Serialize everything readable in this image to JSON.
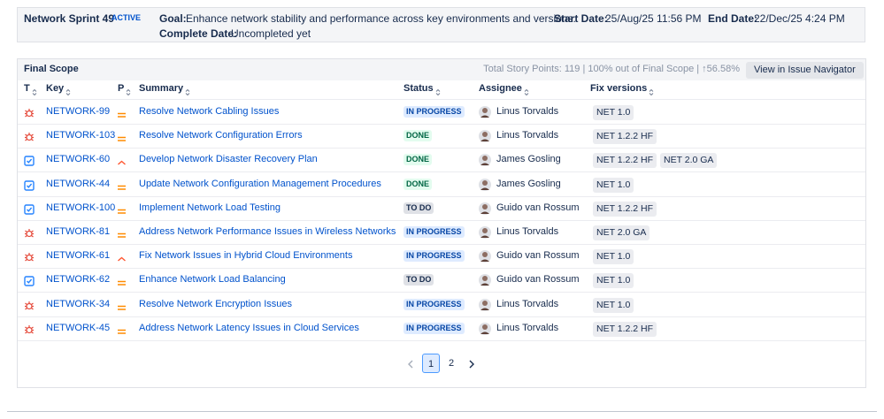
{
  "header": {
    "sprint": "Network Sprint 49",
    "state": "ACTIVE",
    "goal_label": "Goal:",
    "goal": "Enhance network stability and performance across key environments and versions.",
    "start_label": "Start Date:",
    "start": "25/Aug/25 11:56 PM",
    "end_label": "End Date:",
    "end": "22/Dec/25 4:24 PM",
    "complete_label": "Complete Date:",
    "complete": "Uncompleted yet"
  },
  "scope": {
    "title": "Final Scope",
    "summary": "Total Story Points: 119 | 100% out of Final Scope | ↑56.58%",
    "button": "View in Issue Navigator"
  },
  "table": {
    "columns": [
      "T",
      "Key",
      "P",
      "Summary",
      "Status",
      "Assignee",
      "Fix versions"
    ],
    "rows": [
      {
        "type": "bug",
        "key": "NETWORK-99",
        "priority": "medium",
        "summary": "Resolve Network Cabling Issues",
        "status": {
          "text": "IN PROGRESS",
          "bg": "#deebff",
          "fg": "#0747a6"
        },
        "assignee": "Linus Torvalds",
        "fix_versions": [
          "NET 1.0"
        ]
      },
      {
        "type": "bug",
        "key": "NETWORK-103",
        "priority": "medium",
        "summary": "Resolve Network Configuration Errors",
        "status": {
          "text": "DONE",
          "bg": "#e3fcef",
          "fg": "#006644"
        },
        "assignee": "Linus Torvalds",
        "fix_versions": [
          "NET 1.2.2 HF"
        ]
      },
      {
        "type": "task",
        "key": "NETWORK-60",
        "priority": "high",
        "summary": "Develop Network Disaster Recovery Plan",
        "status": {
          "text": "DONE",
          "bg": "#e3fcef",
          "fg": "#006644"
        },
        "assignee": "James Gosling",
        "fix_versions": [
          "NET 1.2.2 HF",
          "NET 2.0 GA"
        ]
      },
      {
        "type": "task",
        "key": "NETWORK-44",
        "priority": "medium",
        "summary": "Update Network Configuration Management Procedures",
        "status": {
          "text": "DONE",
          "bg": "#e3fcef",
          "fg": "#006644"
        },
        "assignee": "James Gosling",
        "fix_versions": [
          "NET 1.0"
        ]
      },
      {
        "type": "task",
        "key": "NETWORK-100",
        "priority": "medium",
        "summary": "Implement Network Load Testing",
        "status": {
          "text": "TO DO",
          "bg": "#dfe1e6",
          "fg": "#172b4d"
        },
        "assignee": "Guido van Rossum",
        "fix_versions": [
          "NET 1.2.2 HF"
        ]
      },
      {
        "type": "bug",
        "key": "NETWORK-81",
        "priority": "medium",
        "summary": "Address Network Performance Issues in Wireless Networks",
        "status": {
          "text": "IN PROGRESS",
          "bg": "#deebff",
          "fg": "#0747a6"
        },
        "assignee": "Linus Torvalds",
        "fix_versions": [
          "NET 2.0 GA"
        ]
      },
      {
        "type": "bug",
        "key": "NETWORK-61",
        "priority": "high",
        "summary": "Fix Network Issues in Hybrid Cloud Environments",
        "status": {
          "text": "IN PROGRESS",
          "bg": "#deebff",
          "fg": "#0747a6"
        },
        "assignee": "Guido van Rossum",
        "fix_versions": [
          "NET 1.0"
        ]
      },
      {
        "type": "task",
        "key": "NETWORK-62",
        "priority": "medium",
        "summary": "Enhance Network Load Balancing",
        "status": {
          "text": "TO DO",
          "bg": "#dfe1e6",
          "fg": "#172b4d"
        },
        "assignee": "Guido van Rossum",
        "fix_versions": [
          "NET 1.0"
        ]
      },
      {
        "type": "bug",
        "key": "NETWORK-34",
        "priority": "medium",
        "summary": "Resolve Network Encryption Issues",
        "status": {
          "text": "IN PROGRESS",
          "bg": "#deebff",
          "fg": "#0747a6"
        },
        "assignee": "Linus Torvalds",
        "fix_versions": [
          "NET 1.0"
        ]
      },
      {
        "type": "bug",
        "key": "NETWORK-45",
        "priority": "medium",
        "summary": "Address Network Latency Issues in Cloud Services",
        "status": {
          "text": "IN PROGRESS",
          "bg": "#deebff",
          "fg": "#0747a6"
        },
        "assignee": "Linus Torvalds",
        "fix_versions": [
          "NET 1.2.2 HF"
        ]
      }
    ]
  },
  "pagination": {
    "pages": [
      1,
      2
    ]
  }
}
